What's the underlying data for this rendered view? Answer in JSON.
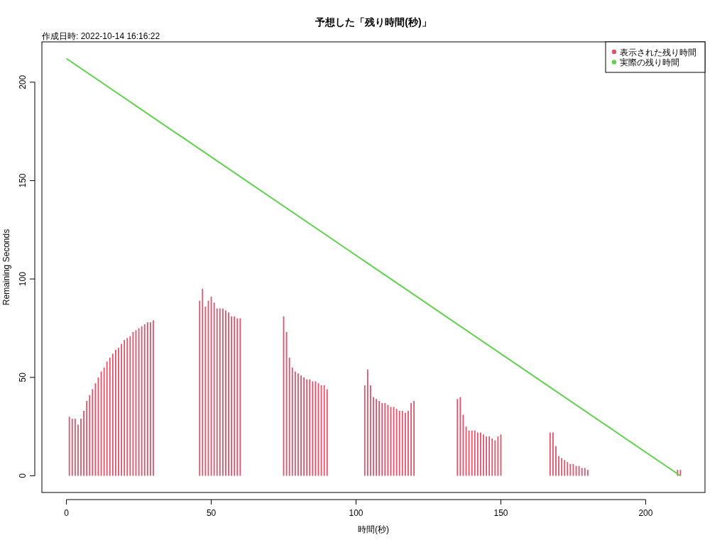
{
  "chart_data": {
    "type": "bar",
    "title": "予想した「残り時間(秒)」",
    "annotations": [
      "作成日時: 2022-10-14 16:16:22"
    ],
    "xlabel": "時間(秒)",
    "ylabel": "Remaining Seconds",
    "xlim": [
      -8.48,
      220.48
    ],
    "ylim": [
      -8.48,
      220.48
    ],
    "xticks": [
      0,
      50,
      100,
      150,
      200
    ],
    "yticks": [
      0,
      50,
      100,
      150,
      200
    ],
    "legend": "top right",
    "series": [
      {
        "name": "表示された残り時間",
        "color": "#df536b",
        "x": [
          1,
          2,
          3,
          4,
          5,
          6,
          7,
          8,
          9,
          10,
          11,
          12,
          13,
          14,
          15,
          16,
          17,
          18,
          19,
          20,
          21,
          22,
          23,
          24,
          25,
          26,
          27,
          28,
          29,
          30,
          46,
          47,
          48,
          49,
          50,
          51,
          52,
          53,
          54,
          55,
          56,
          57,
          58,
          59,
          60,
          75,
          76,
          77,
          78,
          79,
          80,
          81,
          82,
          83,
          84,
          85,
          86,
          87,
          88,
          89,
          90,
          103,
          104,
          105,
          106,
          107,
          108,
          109,
          110,
          111,
          112,
          113,
          114,
          115,
          116,
          117,
          118,
          119,
          120,
          135,
          136,
          137,
          138,
          139,
          140,
          141,
          142,
          143,
          144,
          145,
          146,
          147,
          148,
          149,
          150,
          167,
          168,
          169,
          170,
          171,
          172,
          173,
          174,
          175,
          176,
          177,
          178,
          179,
          180,
          211,
          212
        ],
        "values": [
          30,
          29,
          29,
          26,
          29,
          33,
          38,
          41,
          44,
          47,
          50,
          53,
          55,
          58,
          60,
          62,
          64,
          65,
          67,
          69,
          70,
          71,
          73,
          74,
          75,
          76,
          77,
          78,
          78,
          79,
          89,
          95,
          86,
          89,
          91,
          88,
          85,
          85,
          85,
          84,
          83,
          81,
          81,
          80,
          80,
          81,
          73,
          60,
          55,
          53,
          52,
          51,
          50,
          49,
          49,
          48,
          48,
          47,
          46,
          46,
          44,
          46,
          54,
          46,
          40,
          39,
          38,
          37,
          37,
          36,
          35,
          35,
          34,
          33,
          33,
          32,
          33,
          37,
          38,
          39,
          40,
          31,
          25,
          23,
          23,
          23,
          22,
          22,
          21,
          20,
          20,
          19,
          18,
          20,
          21,
          22,
          22,
          15,
          10,
          9,
          8,
          7,
          6,
          6,
          5,
          5,
          4,
          4,
          3,
          3,
          3
        ]
      },
      {
        "name": "実際の残り時間",
        "type": "line",
        "color": "#61d04f",
        "x": [
          0,
          212
        ],
        "values": [
          212,
          0
        ]
      }
    ]
  }
}
